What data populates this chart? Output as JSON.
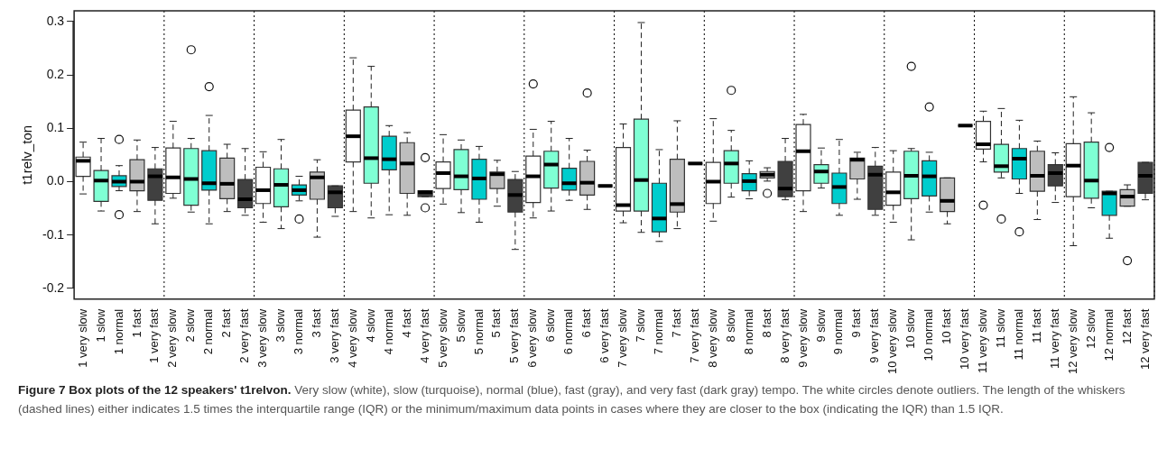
{
  "chart_data": {
    "type": "box",
    "title": "Figure 7 Box plots of the 12 speakers' t1relvon.",
    "annotations": [
      "Very slow (white), slow (turquoise), normal (blue), fast (gray), and very fast (dark gray) tempo. The white circles denote outliers. The length of the whiskers (dashed lines) either indicates 1.5 times the interquartile range (IQR) or the minimum/maximum data points in cases where they are closer to the box (indicating the IQR) than 1.5 IQR."
    ],
    "ylabel": "t1relv_ton",
    "categories": [
      "1 very slow",
      "1 slow",
      "1 normal",
      "1 fast",
      "1 very fast",
      "2 very slow",
      "2 slow",
      "2 normal",
      "2 fast",
      "2 very fast",
      "3 very slow",
      "3 slow",
      "3 normal",
      "3 fast",
      "3 very fast",
      "4 very slow",
      "4 slow",
      "4 normal",
      "4 fast",
      "4 very fast",
      "5 very slow",
      "5 slow",
      "5 normal",
      "5 fast",
      "5 very fast",
      "6 very slow",
      "6 slow",
      "6 normal",
      "6 fast",
      "6 very fast",
      "7 very slow",
      "7 slow",
      "7 normal",
      "7 fast",
      "7 very fast",
      "8 very slow",
      "8 slow",
      "8 normal",
      "8 fast",
      "8 very fast",
      "9 very slow",
      "9 slow",
      "9 normal",
      "9 fast",
      "9 very fast",
      "10 very slow",
      "10 slow",
      "10 normal",
      "10 fast",
      "10 very fast",
      "11 very slow",
      "11 slow",
      "11 normal",
      "11 fast",
      "11 very fast",
      "12 very slow",
      "12 slow",
      "12 normal",
      "12 fast",
      "12 very fast"
    ],
    "colors": [
      "#ffffff",
      "#7fffd4",
      "#00cdcd",
      "#bebebe",
      "#404040",
      "#ffffff",
      "#7fffd4",
      "#00cdcd",
      "#bebebe",
      "#404040",
      "#ffffff",
      "#7fffd4",
      "#00cdcd",
      "#bebebe",
      "#404040",
      "#ffffff",
      "#7fffd4",
      "#00cdcd",
      "#bebebe",
      "#404040",
      "#ffffff",
      "#7fffd4",
      "#00cdcd",
      "#bebebe",
      "#404040",
      "#ffffff",
      "#7fffd4",
      "#00cdcd",
      "#bebebe",
      "#404040",
      "#ffffff",
      "#7fffd4",
      "#00cdcd",
      "#bebebe",
      "#404040",
      "#ffffff",
      "#7fffd4",
      "#00cdcd",
      "#bebebe",
      "#404040",
      "#ffffff",
      "#7fffd4",
      "#00cdcd",
      "#bebebe",
      "#404040",
      "#ffffff",
      "#7fffd4",
      "#00cdcd",
      "#bebebe",
      "#404040",
      "#ffffff",
      "#7fffd4",
      "#00cdcd",
      "#bebebe",
      "#404040",
      "#ffffff",
      "#7fffd4",
      "#00cdcd",
      "#bebebe",
      "#404040"
    ],
    "boxes": [
      {
        "low": -0.023,
        "q1": 0.01,
        "median": 0.039,
        "q3": 0.046,
        "high": 0.074
      },
      {
        "low": -0.055,
        "q1": -0.037,
        "median": 0.002,
        "q3": 0.021,
        "high": 0.081
      },
      {
        "low": -0.017,
        "q1": -0.009,
        "median": 0.0,
        "q3": 0.011,
        "high": 0.03,
        "outliers": [
          0.079,
          -0.062
        ]
      },
      {
        "low": -0.056,
        "q1": -0.017,
        "median": 0.0,
        "q3": 0.041,
        "high": 0.078
      },
      {
        "low": -0.079,
        "q1": -0.035,
        "median": 0.01,
        "q3": 0.024,
        "high": 0.064
      },
      {
        "low": -0.031,
        "q1": -0.022,
        "median": 0.008,
        "q3": 0.063,
        "high": 0.113
      },
      {
        "low": -0.057,
        "q1": -0.044,
        "median": 0.005,
        "q3": 0.062,
        "high": 0.081,
        "outliers": [
          0.247
        ]
      },
      {
        "low": -0.079,
        "q1": -0.016,
        "median": -0.003,
        "q3": 0.058,
        "high": 0.124,
        "outliers": [
          0.178
        ]
      },
      {
        "low": -0.056,
        "q1": -0.032,
        "median": -0.004,
        "q3": 0.044,
        "high": 0.07
      },
      {
        "low": -0.063,
        "q1": -0.049,
        "median": -0.033,
        "q3": 0.004,
        "high": 0.062
      },
      {
        "low": -0.076,
        "q1": -0.041,
        "median": -0.016,
        "q3": 0.027,
        "high": 0.056
      },
      {
        "low": -0.088,
        "q1": -0.047,
        "median": -0.006,
        "q3": 0.024,
        "high": 0.079
      },
      {
        "low": -0.036,
        "q1": -0.025,
        "median": -0.016,
        "q3": -0.006,
        "high": 0.01,
        "outliers": [
          -0.07
        ]
      },
      {
        "low": -0.104,
        "q1": -0.033,
        "median": 0.008,
        "q3": 0.018,
        "high": 0.041
      },
      {
        "low": -0.065,
        "q1": -0.049,
        "median": -0.02,
        "q3": -0.008,
        "high": -0.008
      },
      {
        "low": -0.056,
        "q1": 0.037,
        "median": 0.085,
        "q3": 0.134,
        "high": 0.232
      },
      {
        "low": -0.068,
        "q1": -0.003,
        "median": 0.044,
        "q3": 0.14,
        "high": 0.216
      },
      {
        "low": -0.062,
        "q1": 0.022,
        "median": 0.042,
        "q3": 0.085,
        "high": 0.105
      },
      {
        "low": -0.063,
        "q1": -0.022,
        "median": 0.034,
        "q3": 0.073,
        "high": 0.092
      },
      {
        "low": -0.028,
        "q1": -0.028,
        "median": -0.02,
        "q3": -0.017,
        "high": -0.017,
        "outliers": [
          0.045,
          -0.049
        ]
      },
      {
        "low": -0.042,
        "q1": -0.013,
        "median": 0.016,
        "q3": 0.037,
        "high": 0.088
      },
      {
        "low": -0.058,
        "q1": -0.015,
        "median": 0.01,
        "q3": 0.06,
        "high": 0.078
      },
      {
        "low": -0.076,
        "q1": -0.033,
        "median": 0.006,
        "q3": 0.042,
        "high": 0.066
      },
      {
        "low": -0.046,
        "q1": -0.013,
        "median": 0.014,
        "q3": 0.018,
        "high": 0.04
      },
      {
        "low": -0.127,
        "q1": -0.057,
        "median": -0.025,
        "q3": 0.004,
        "high": 0.019
      },
      {
        "low": -0.068,
        "q1": -0.039,
        "median": 0.01,
        "q3": 0.048,
        "high": 0.098,
        "outliers": [
          0.183
        ]
      },
      {
        "low": -0.055,
        "q1": -0.012,
        "median": 0.032,
        "q3": 0.057,
        "high": 0.113
      },
      {
        "low": -0.035,
        "q1": -0.016,
        "median": -0.003,
        "q3": 0.025,
        "high": 0.081
      },
      {
        "low": -0.052,
        "q1": -0.025,
        "median": -0.002,
        "q3": 0.038,
        "high": 0.059,
        "outliers": [
          0.166
        ]
      },
      {
        "low": -0.008,
        "q1": -0.008,
        "median": -0.008,
        "q3": -0.008,
        "high": -0.008
      },
      {
        "low": -0.077,
        "q1": -0.055,
        "median": -0.044,
        "q3": 0.064,
        "high": 0.108
      },
      {
        "low": -0.095,
        "q1": -0.055,
        "median": 0.003,
        "q3": 0.117,
        "high": 0.298
      },
      {
        "low": -0.112,
        "q1": -0.094,
        "median": -0.069,
        "q3": -0.003,
        "high": 0.06
      },
      {
        "low": -0.088,
        "q1": -0.057,
        "median": -0.042,
        "q3": 0.042,
        "high": 0.114
      },
      {
        "low": 0.034,
        "q1": 0.034,
        "median": 0.034,
        "q3": 0.034,
        "high": 0.034
      },
      {
        "low": -0.074,
        "q1": -0.041,
        "median": 0.0,
        "q3": 0.036,
        "high": 0.118
      },
      {
        "low": -0.029,
        "q1": -0.003,
        "median": 0.034,
        "q3": 0.058,
        "high": 0.096,
        "outliers": [
          0.171
        ]
      },
      {
        "low": -0.032,
        "q1": -0.017,
        "median": 0.001,
        "q3": 0.015,
        "high": 0.039
      },
      {
        "low": 0.001,
        "q1": 0.007,
        "median": 0.013,
        "q3": 0.019,
        "high": 0.026,
        "outliers": [
          -0.022
        ]
      },
      {
        "low": -0.034,
        "q1": -0.028,
        "median": -0.013,
        "q3": 0.038,
        "high": 0.081
      },
      {
        "low": -0.056,
        "q1": -0.017,
        "median": 0.057,
        "q3": 0.107,
        "high": 0.126
      },
      {
        "low": -0.012,
        "q1": -0.003,
        "median": 0.019,
        "q3": 0.032,
        "high": 0.063
      },
      {
        "low": -0.063,
        "q1": -0.041,
        "median": -0.01,
        "q3": 0.016,
        "high": 0.079
      },
      {
        "low": -0.033,
        "q1": 0.005,
        "median": 0.041,
        "q3": 0.044,
        "high": 0.055
      },
      {
        "low": -0.063,
        "q1": -0.052,
        "median": 0.013,
        "q3": 0.029,
        "high": 0.064
      },
      {
        "low": -0.076,
        "q1": -0.044,
        "median": -0.02,
        "q3": 0.018,
        "high": 0.058
      },
      {
        "low": -0.109,
        "q1": -0.032,
        "median": 0.011,
        "q3": 0.057,
        "high": 0.062,
        "outliers": [
          0.216
        ]
      },
      {
        "low": -0.057,
        "q1": -0.027,
        "median": 0.01,
        "q3": 0.039,
        "high": 0.055,
        "outliers": [
          0.14
        ]
      },
      {
        "low": -0.079,
        "q1": -0.056,
        "median": -0.036,
        "q3": 0.007,
        "high": 0.007
      },
      {
        "low": 0.105,
        "q1": 0.105,
        "median": 0.105,
        "q3": 0.105,
        "high": 0.105
      },
      {
        "low": 0.037,
        "q1": 0.061,
        "median": 0.07,
        "q3": 0.113,
        "high": 0.132,
        "outliers": [
          -0.044
        ]
      },
      {
        "low": 0.007,
        "q1": 0.018,
        "median": 0.029,
        "q3": 0.07,
        "high": 0.137,
        "outliers": [
          -0.07
        ]
      },
      {
        "low": -0.022,
        "q1": 0.005,
        "median": 0.043,
        "q3": 0.062,
        "high": 0.115,
        "outliers": [
          -0.094
        ]
      },
      {
        "low": -0.071,
        "q1": -0.018,
        "median": 0.011,
        "q3": 0.057,
        "high": 0.076
      },
      {
        "low": -0.039,
        "q1": -0.008,
        "median": 0.016,
        "q3": 0.032,
        "high": 0.054
      },
      {
        "low": -0.12,
        "q1": -0.028,
        "median": 0.03,
        "q3": 0.071,
        "high": 0.159
      },
      {
        "low": -0.049,
        "q1": -0.031,
        "median": 0.002,
        "q3": 0.074,
        "high": 0.129
      },
      {
        "low": -0.106,
        "q1": -0.063,
        "median": -0.022,
        "q3": -0.018,
        "high": -0.018,
        "outliers": [
          0.064
        ]
      },
      {
        "low": -0.046,
        "q1": -0.046,
        "median": -0.028,
        "q3": -0.015,
        "high": -0.006,
        "outliers": [
          -0.148
        ]
      },
      {
        "low": -0.034,
        "q1": -0.022,
        "median": 0.011,
        "q3": 0.036,
        "high": 0.036
      }
    ],
    "ylim": [
      -0.22,
      0.32
    ],
    "yticks": [
      {
        "value": -0.2,
        "label": "-0.2"
      },
      {
        "value": -0.1,
        "label": "-0.1"
      },
      {
        "value": 0,
        "label": "0.0"
      },
      {
        "value": 0.1,
        "label": "0.1"
      },
      {
        "value": 0.2,
        "label": "0.2"
      },
      {
        "value": 0.3,
        "label": "0.3"
      }
    ]
  }
}
